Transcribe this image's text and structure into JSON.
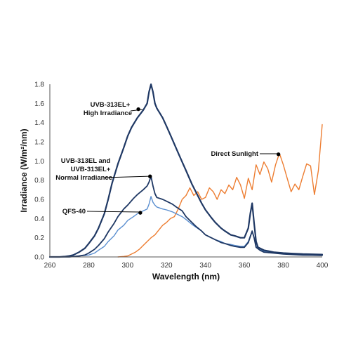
{
  "chart_data": {
    "type": "line",
    "title": "",
    "xlabel": "Wavelength (nm)",
    "ylabel": "Irradiance (W/m²/nm)",
    "xlim": [
      260,
      400
    ],
    "ylim": [
      0,
      1.8
    ],
    "xticks": [
      260,
      280,
      300,
      320,
      340,
      360,
      380,
      400
    ],
    "yticks": [
      0.0,
      0.2,
      0.4,
      0.6,
      0.8,
      1.0,
      1.2,
      1.4,
      1.6,
      1.8
    ],
    "xtick_labels": [
      "260",
      "280",
      "300",
      "320",
      "340",
      "360",
      "380",
      "400"
    ],
    "ytick_labels": [
      "0.0",
      "0.2",
      "0.4",
      "0.6",
      "0.8",
      "1.0",
      "1.2",
      "1.4",
      "1.6",
      "1.8"
    ],
    "grid": false,
    "legend": "none",
    "series": [
      {
        "key": "high",
        "color": "#1f3864",
        "width": 2.2,
        "x": [
          260,
          265,
          268,
          270,
          272,
          275,
          278,
          280,
          283,
          285,
          288,
          290,
          292,
          295,
          298,
          300,
          302,
          305,
          308,
          310,
          311,
          312,
          313,
          314,
          315,
          318,
          320,
          322,
          325,
          328,
          330,
          333,
          335,
          338,
          340,
          343,
          345,
          348,
          350,
          353,
          355,
          358,
          360,
          362,
          363,
          364,
          365,
          366,
          367,
          370,
          375,
          380,
          385,
          390,
          395,
          400
        ],
        "y": [
          0.0,
          0.0,
          0.005,
          0.01,
          0.02,
          0.05,
          0.09,
          0.14,
          0.22,
          0.3,
          0.45,
          0.6,
          0.77,
          0.97,
          1.14,
          1.26,
          1.35,
          1.45,
          1.53,
          1.6,
          1.72,
          1.8,
          1.72,
          1.6,
          1.55,
          1.45,
          1.36,
          1.27,
          1.13,
          0.99,
          0.9,
          0.76,
          0.68,
          0.56,
          0.49,
          0.41,
          0.36,
          0.3,
          0.27,
          0.23,
          0.22,
          0.2,
          0.2,
          0.3,
          0.45,
          0.56,
          0.35,
          0.16,
          0.1,
          0.07,
          0.05,
          0.04,
          0.035,
          0.03,
          0.028,
          0.025
        ]
      },
      {
        "key": "normal",
        "color": "#1f3864",
        "width": 1.8,
        "x": [
          260,
          270,
          275,
          278,
          280,
          283,
          285,
          288,
          290,
          293,
          295,
          298,
          300,
          303,
          305,
          308,
          310,
          311,
          312,
          313,
          314,
          315,
          318,
          320,
          323,
          325,
          328,
          330,
          333,
          335,
          338,
          340,
          343,
          345,
          348,
          350,
          353,
          355,
          358,
          360,
          362,
          363,
          364,
          365,
          366,
          368,
          370,
          375,
          380,
          385,
          390,
          395,
          400
        ],
        "y": [
          0.0,
          0.0,
          0.01,
          0.02,
          0.04,
          0.08,
          0.12,
          0.19,
          0.26,
          0.35,
          0.42,
          0.5,
          0.54,
          0.61,
          0.65,
          0.7,
          0.74,
          0.78,
          0.84,
          0.74,
          0.66,
          0.62,
          0.6,
          0.58,
          0.55,
          0.52,
          0.48,
          0.42,
          0.36,
          0.32,
          0.27,
          0.23,
          0.2,
          0.18,
          0.15,
          0.14,
          0.12,
          0.11,
          0.1,
          0.1,
          0.15,
          0.21,
          0.27,
          0.2,
          0.1,
          0.07,
          0.05,
          0.04,
          0.03,
          0.025,
          0.02,
          0.018,
          0.015
        ]
      },
      {
        "key": "qfs",
        "color": "#5b8fd0",
        "width": 1.4,
        "x": [
          260,
          270,
          275,
          280,
          283,
          285,
          288,
          290,
          293,
          295,
          298,
          300,
          303,
          305,
          308,
          310,
          311,
          312,
          313,
          314,
          315,
          318,
          320,
          323,
          325,
          328,
          330,
          333,
          335,
          338,
          340,
          343,
          345,
          348,
          350,
          353,
          355,
          358,
          360,
          362,
          363,
          364,
          365,
          366,
          368,
          370,
          375,
          380,
          385,
          390,
          395,
          400
        ],
        "y": [
          0.0,
          0.0,
          0.01,
          0.02,
          0.04,
          0.07,
          0.11,
          0.16,
          0.22,
          0.28,
          0.33,
          0.38,
          0.42,
          0.45,
          0.48,
          0.5,
          0.55,
          0.63,
          0.57,
          0.54,
          0.52,
          0.5,
          0.49,
          0.47,
          0.45,
          0.42,
          0.39,
          0.34,
          0.31,
          0.27,
          0.23,
          0.2,
          0.18,
          0.16,
          0.14,
          0.13,
          0.12,
          0.11,
          0.11,
          0.16,
          0.22,
          0.26,
          0.2,
          0.11,
          0.08,
          0.06,
          0.05,
          0.04,
          0.035,
          0.03,
          0.028,
          0.025
        ]
      },
      {
        "key": "sun",
        "color": "#ed7d31",
        "width": 1.4,
        "x": [
          295,
          298,
          300,
          302,
          304,
          306,
          308,
          310,
          312,
          314,
          316,
          318,
          320,
          322,
          324,
          326,
          328,
          330,
          332,
          334,
          336,
          338,
          340,
          342,
          344,
          346,
          348,
          350,
          352,
          354,
          356,
          358,
          360,
          362,
          364,
          366,
          368,
          370,
          372,
          374,
          376,
          378,
          380,
          382,
          384,
          386,
          388,
          390,
          392,
          394,
          396,
          398,
          400
        ],
        "y": [
          0.0,
          0.005,
          0.01,
          0.03,
          0.05,
          0.08,
          0.12,
          0.16,
          0.2,
          0.23,
          0.28,
          0.33,
          0.36,
          0.4,
          0.42,
          0.5,
          0.6,
          0.64,
          0.72,
          0.64,
          0.68,
          0.6,
          0.62,
          0.72,
          0.68,
          0.6,
          0.7,
          0.66,
          0.75,
          0.7,
          0.83,
          0.75,
          0.61,
          0.82,
          0.7,
          0.96,
          0.86,
          0.99,
          0.92,
          0.78,
          0.96,
          1.08,
          0.96,
          0.82,
          0.68,
          0.76,
          0.7,
          0.84,
          0.97,
          0.95,
          0.65,
          0.9,
          1.38
        ]
      }
    ],
    "annotations": [
      {
        "key": "a_high",
        "lines": [
          "UVB-313EL+",
          "High Irradiance"
        ],
        "point": [
          305.5,
          1.54
        ]
      },
      {
        "key": "a_normal",
        "lines": [
          "UVB-313EL and",
          "UVB-313EL+",
          "Normal Irradiance"
        ],
        "point": [
          311.5,
          0.84
        ]
      },
      {
        "key": "a_qfs",
        "lines": [
          "QFS-40"
        ],
        "point": [
          306.5,
          0.46
        ]
      },
      {
        "key": "a_sun",
        "lines": [
          "Direct Sunlight"
        ],
        "point": [
          377.5,
          1.07
        ]
      }
    ]
  }
}
